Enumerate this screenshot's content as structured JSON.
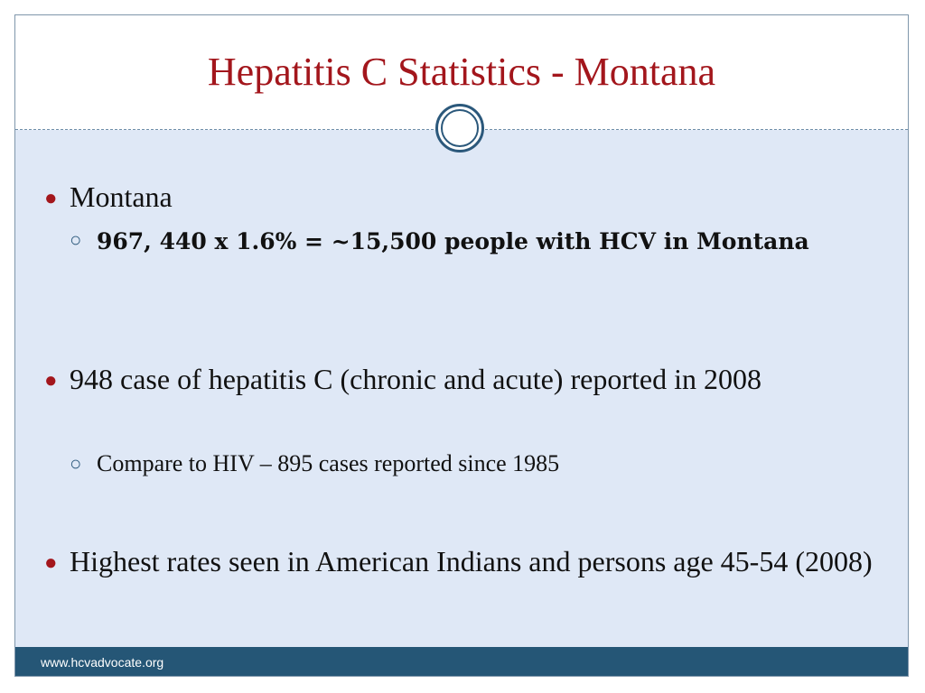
{
  "title": "Hepatitis C Statistics - Montana",
  "bullets": [
    {
      "text": "Montana",
      "sub": [
        "967, 440 x 1.6% = ~15,500 people with HCV in Montana"
      ]
    },
    {
      "text": "948 case of hepatitis C (chronic and acute) reported in 2008",
      "sub": [
        "Compare to HIV – 895 cases reported since 1985"
      ]
    },
    {
      "text": "Highest rates seen in American Indians and persons age 45-54 (2008)",
      "sub": []
    }
  ],
  "footer": {
    "url": "www.hcvadvocate.org"
  },
  "colors": {
    "title": "#a3161c",
    "accent": "#2b587b",
    "content_bg": "#dfe8f6",
    "footer_bg": "#255676"
  }
}
